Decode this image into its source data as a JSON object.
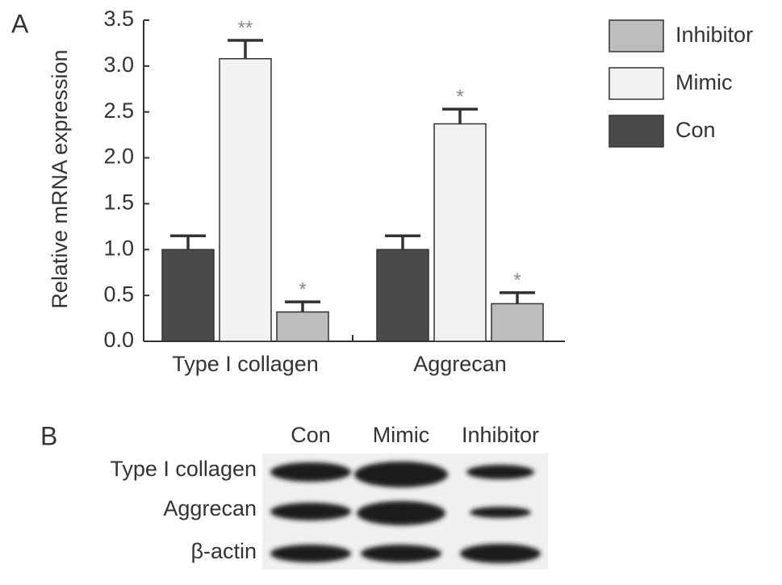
{
  "chart_data": {
    "type": "bar",
    "panel_label": "A",
    "y_label": "Relative mRNA expression",
    "categories": [
      "Type I collagen",
      "Aggrecan"
    ],
    "series": [
      {
        "name": "Con",
        "color": "#4a4a4a",
        "values": [
          1.0,
          1.0
        ],
        "errors": [
          0.15,
          0.15
        ],
        "annotations": [
          null,
          null
        ]
      },
      {
        "name": "Mimic",
        "color": "#f2f2f2",
        "values": [
          3.08,
          2.37
        ],
        "errors": [
          0.2,
          0.16
        ],
        "annotations": [
          "**",
          "*"
        ]
      },
      {
        "name": "Inhibitor",
        "color": "#bdbdbd",
        "values": [
          0.32,
          0.41
        ],
        "errors": [
          0.11,
          0.12
        ],
        "annotations": [
          "*",
          "*"
        ]
      }
    ],
    "ylim": [
      0,
      3.5
    ],
    "yticks": [
      {
        "value": 0,
        "label": "0.0"
      },
      0.5,
      {
        "value": 1,
        "label": "1.0"
      },
      1.5,
      {
        "value": 2,
        "label": "2.0"
      },
      2.5,
      {
        "value": 3,
        "label": "3.0"
      },
      3.5
    ],
    "legend": "right"
  },
  "blot": {
    "panel_label": "B",
    "columns": [
      "Con",
      "Mimic",
      "Inhibitor"
    ],
    "rows": [
      "Type I collagen",
      "Aggrecan",
      "β-actin"
    ]
  }
}
